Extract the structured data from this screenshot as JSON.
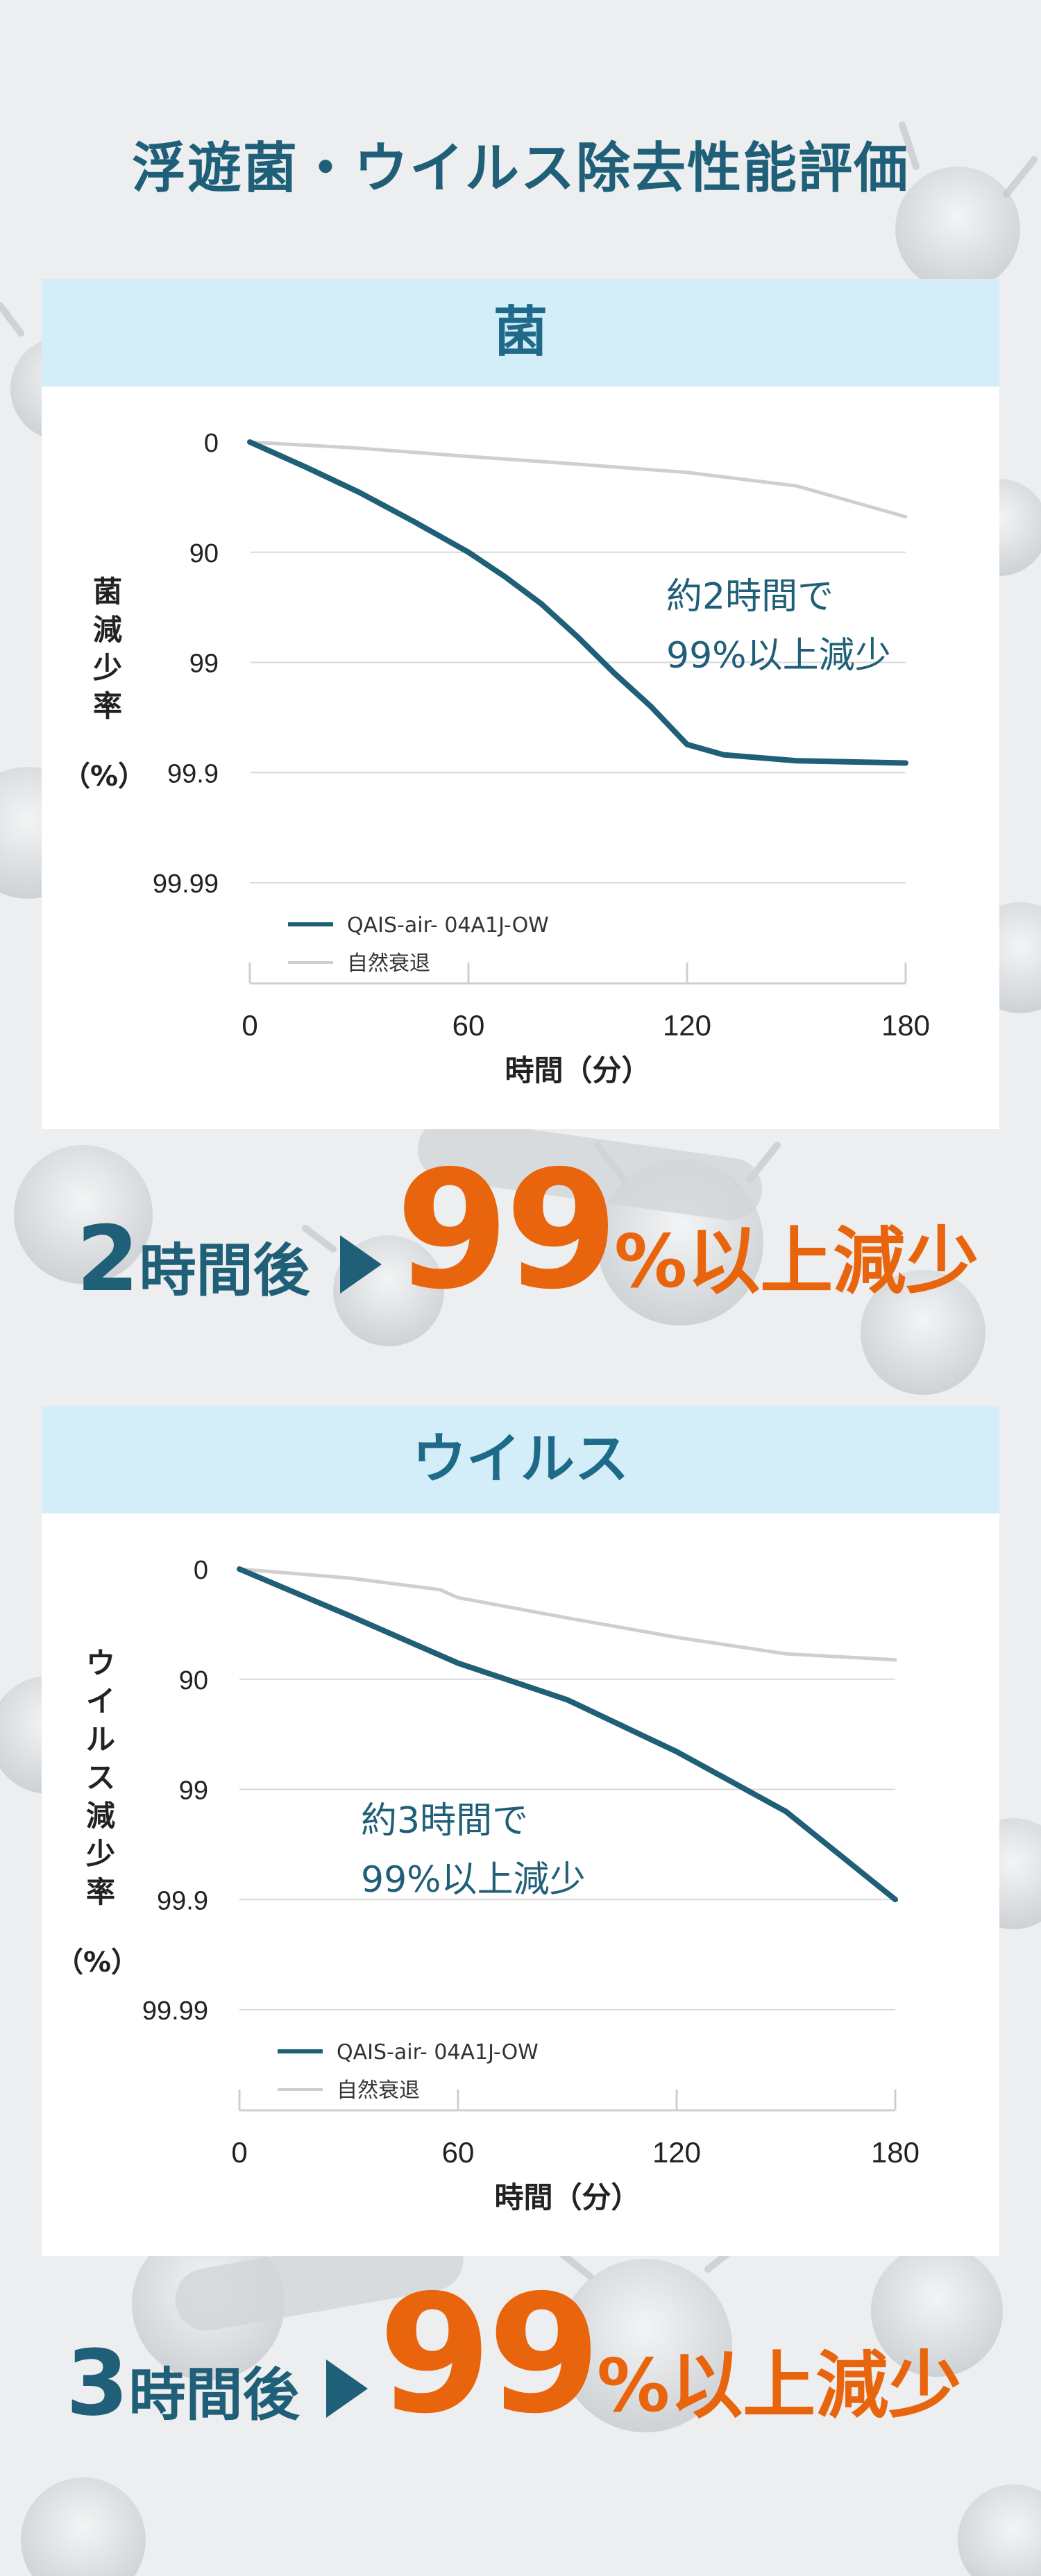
{
  "page_title": "浮遊菌・ウイルス除去性能評価",
  "colors": {
    "primary": "#1f5f78",
    "accent": "#e8650e",
    "header_band": "#d3eef8",
    "natural_line": "#cfcfcf",
    "grid": "#d9d9d9"
  },
  "chart_data": [
    {
      "type": "line",
      "title": "菌",
      "xlabel": "時間（分）",
      "ylabel_chars": [
        "菌",
        "減",
        "少",
        "率"
      ],
      "ylabel_unit": "（%）",
      "y_scale": "log-reduction",
      "x_ticks": [
        0,
        60,
        120,
        180
      ],
      "y_ticks": [
        "0",
        "90",
        "99",
        "99.9",
        "99.99"
      ],
      "xlim": [
        0,
        180
      ],
      "ylim": [
        0,
        99.99
      ],
      "grid": true,
      "legend": "bottom-left",
      "annotation": [
        "約2時間で",
        "99%以上減少"
      ],
      "series": [
        {
          "name": "QAIS-air- 04A1J-OW",
          "color": "#1f5f78",
          "points": [
            [
              0,
              0
            ],
            [
              15,
              40
            ],
            [
              30,
              65
            ],
            [
              45,
              81
            ],
            [
              60,
              90
            ],
            [
              70,
              94
            ],
            [
              80,
              96.6
            ],
            [
              90,
              98.3
            ],
            [
              100,
              99.2
            ],
            [
              110,
              99.6
            ],
            [
              120,
              99.82
            ],
            [
              130,
              99.855
            ],
            [
              150,
              99.872
            ],
            [
              180,
              99.878
            ]
          ]
        },
        {
          "name": "自然衰退",
          "color": "#cfcfcf",
          "points": [
            [
              0,
              0
            ],
            [
              30,
              12
            ],
            [
              60,
              26
            ],
            [
              90,
              37
            ],
            [
              120,
              47
            ],
            [
              150,
              60
            ],
            [
              180,
              79
            ]
          ]
        }
      ]
    },
    {
      "type": "line",
      "title": "ウイルス",
      "xlabel": "時間（分）",
      "ylabel_chars": [
        "ウ",
        "イ",
        "ル",
        "ス",
        "減",
        "少",
        "率"
      ],
      "ylabel_unit": "（%）",
      "y_scale": "log-reduction",
      "x_ticks": [
        0,
        60,
        120,
        180
      ],
      "y_ticks": [
        "0",
        "90",
        "99",
        "99.9",
        "99.99"
      ],
      "xlim": [
        0,
        180
      ],
      "ylim": [
        0,
        99.99
      ],
      "grid": true,
      "legend": "bottom-left",
      "annotation": [
        "約3時間で",
        "99%以上減少"
      ],
      "series": [
        {
          "name": "QAIS-air- 04A1J-OW",
          "color": "#1f5f78",
          "points": [
            [
              0,
              0
            ],
            [
              30,
              62
            ],
            [
              60,
              86
            ],
            [
              90,
              93.5
            ],
            [
              120,
              97.8
            ],
            [
              150,
              99.37
            ],
            [
              180,
              99.9
            ]
          ]
        },
        {
          "name": "自然衰退",
          "color": "#cfcfcf",
          "points": [
            [
              0,
              0
            ],
            [
              30,
              17
            ],
            [
              55,
              35
            ],
            [
              60,
              45
            ],
            [
              90,
              64
            ],
            [
              120,
              76
            ],
            [
              150,
              83
            ],
            [
              180,
              85
            ]
          ]
        }
      ]
    }
  ],
  "results": [
    {
      "hours": "2",
      "hours_suffix": "時間後",
      "percent": "99",
      "percent_suffix": "%以上減少"
    },
    {
      "hours": "3",
      "hours_suffix": "時間後",
      "percent": "99",
      "percent_suffix": "%以上減少"
    }
  ]
}
